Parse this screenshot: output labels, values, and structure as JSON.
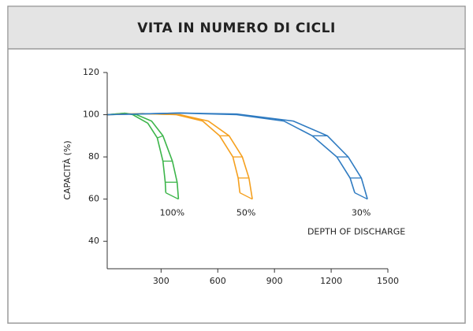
{
  "chart_data": {
    "type": "line",
    "title": "VITA IN NUMERO DI CICLI",
    "y_label": "CAPACITÀ (%)",
    "annotation": "DEPTH OF DISCHARGE",
    "xlim": [
      15,
      1500
    ],
    "ylim": [
      27,
      120
    ],
    "xticks": [
      300,
      600,
      900,
      1200,
      1500
    ],
    "yticks": [
      40,
      60,
      80,
      100,
      120
    ],
    "series": [
      {
        "name": "100%",
        "color": "#3cb54a",
        "lines": [
          {
            "x": [
              17,
              108,
              170,
              250,
              310,
              360,
              385,
              392
            ],
            "values": [
              100,
              100.7,
              100,
              97,
              90,
              78,
              68,
              60
            ]
          },
          {
            "x": [
              17,
              108,
              150,
              230,
              280,
              310,
              322,
              325
            ],
            "values": [
              100,
              100.7,
              100,
              96,
              89,
              78,
              68,
              63
            ]
          }
        ]
      },
      {
        "name": "50%",
        "color": "#f5a01f",
        "lines": [
          {
            "x": [
              17,
              200,
              400,
              550,
              660,
              730,
              765,
              783
            ],
            "values": [
              100,
              100.5,
              100,
              97,
              90,
              80,
              70,
              60
            ]
          },
          {
            "x": [
              17,
              200,
              380,
              520,
              610,
              680,
              708,
              717
            ],
            "values": [
              100,
              100.5,
              100,
              97,
              90,
              80,
              70,
              63
            ]
          }
        ]
      },
      {
        "name": "30%",
        "color": "#2f7bc1",
        "lines": [
          {
            "x": [
              17,
              400,
              700,
              1000,
              1180,
              1290,
              1360,
              1392
            ],
            "values": [
              100,
              100.8,
              100.3,
              97,
              90,
              80,
              70,
              60
            ]
          },
          {
            "x": [
              17,
              400,
              700,
              950,
              1100,
              1230,
              1300,
              1325
            ],
            "values": [
              100,
              100.8,
              100,
              97,
              90,
              80,
              70,
              63
            ]
          }
        ]
      }
    ]
  }
}
